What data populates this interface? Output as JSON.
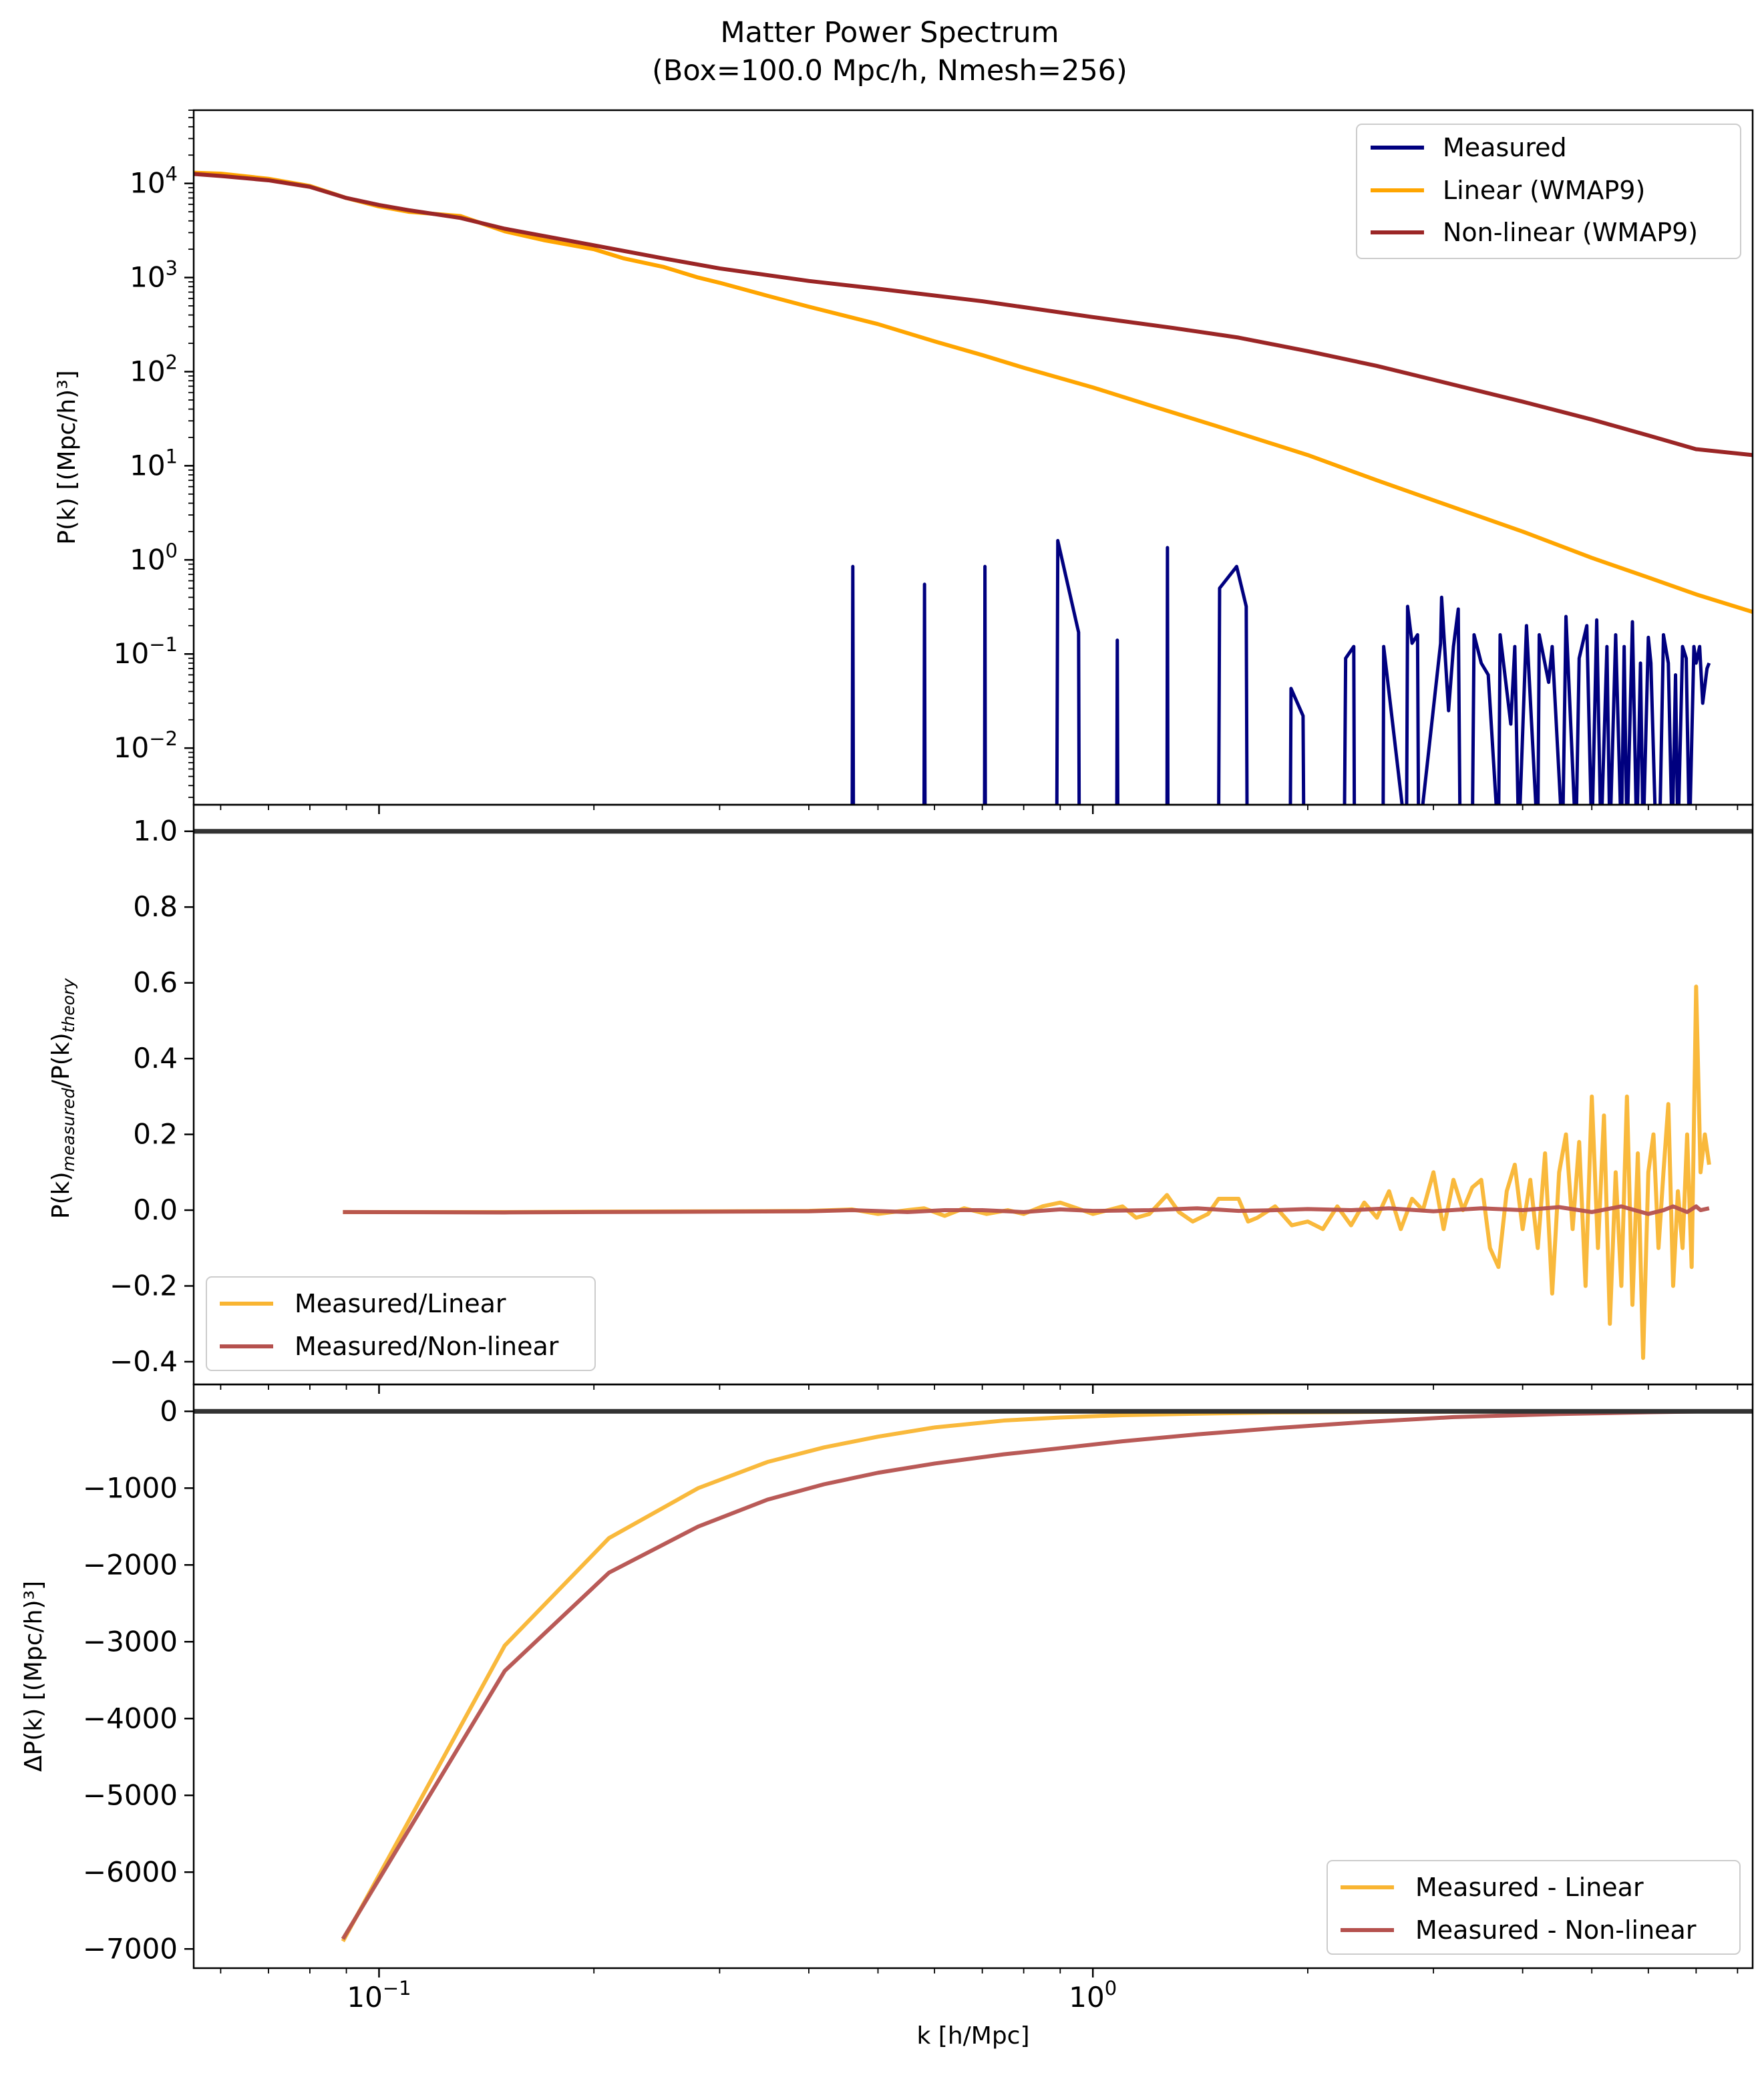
{
  "figure": {
    "title_line1": "Matter Power Spectrum",
    "title_line2": "(Box=100.0 Mpc/h, Nmesh=256)",
    "xlabel": "k [h/Mpc]"
  },
  "chart_data": [
    {
      "id": "power",
      "type": "line",
      "xscale": "log",
      "yscale": "log",
      "xlim": [
        0.055,
        8.4
      ],
      "ylim": [
        0.0025,
        60000
      ],
      "ylabel": "P(k) [(Mpc/h)³]",
      "grid": false,
      "legend_position": "top-right",
      "x_ticks": [
        {
          "base": "10",
          "exp": "−1",
          "value": 0.1
        },
        {
          "base": "10",
          "exp": "0",
          "value": 1
        }
      ],
      "y_ticks": [
        {
          "base": "10",
          "exp": "4",
          "value": 10000
        },
        {
          "base": "10",
          "exp": "3",
          "value": 1000
        },
        {
          "base": "10",
          "exp": "2",
          "value": 100
        },
        {
          "base": "10",
          "exp": "1",
          "value": 10
        },
        {
          "base": "10",
          "exp": "0",
          "value": 1
        },
        {
          "base": "10",
          "exp": "−1",
          "value": 0.1
        },
        {
          "base": "10",
          "exp": "−2",
          "value": 0.01
        }
      ],
      "series": [
        {
          "name": "Measured",
          "color": "#00007f",
          "x": [
            0.46,
            0.461,
            0.462,
            0.58,
            0.581,
            0.582,
            0.705,
            0.706,
            0.707,
            0.89,
            0.893,
            0.955,
            0.957,
            1.08,
            1.082,
            1.084,
            1.27,
            1.272,
            1.274,
            1.5,
            1.505,
            1.59,
            1.64,
            1.645,
            1.89,
            1.895,
            1.97,
            1.975,
            2.25,
            2.26,
            2.32,
            2.325,
            2.55,
            2.555,
            2.75,
            2.76,
            2.8,
            2.85,
            2.86,
            3.07,
            3.08,
            3.15,
            3.2,
            3.25,
            3.27,
            3.4,
            3.42,
            3.5,
            3.58,
            3.7,
            3.72,
            3.85,
            3.9,
            3.95,
            4.05,
            4.2,
            4.22,
            4.35,
            4.4,
            4.55,
            4.6,
            4.75,
            4.8,
            4.92,
            5.0,
            5.08,
            5.15,
            5.25,
            5.3,
            5.4,
            5.5,
            5.55,
            5.6,
            5.7,
            5.78,
            5.85,
            5.9,
            6.0,
            6.05,
            6.15,
            6.22,
            6.3,
            6.4,
            6.48,
            6.55,
            6.6,
            6.7,
            6.78,
            6.85,
            6.95,
            7.0,
            7.08,
            7.15,
            7.25,
            7.3
          ],
          "y": [
            0.001,
            0.85,
            0.001,
            0.001,
            0.55,
            0.001,
            0.001,
            0.85,
            0.001,
            0.001,
            1.6,
            0.17,
            0.001,
            0.001,
            0.14,
            0.001,
            0.001,
            1.35,
            0.001,
            0.001,
            0.5,
            0.85,
            0.32,
            0.001,
            0.001,
            0.043,
            0.022,
            0.001,
            0.001,
            0.09,
            0.12,
            0.001,
            0.001,
            0.12,
            0.001,
            0.32,
            0.13,
            0.16,
            0.001,
            0.13,
            0.4,
            0.025,
            0.12,
            0.3,
            0.001,
            0.001,
            0.16,
            0.08,
            0.06,
            0.001,
            0.16,
            0.018,
            0.12,
            0.001,
            0.2,
            0.001,
            0.16,
            0.05,
            0.12,
            0.001,
            0.25,
            0.001,
            0.09,
            0.2,
            0.001,
            0.23,
            0.001,
            0.12,
            0.001,
            0.16,
            0.001,
            0.12,
            0.001,
            0.22,
            0.001,
            0.08,
            0.001,
            0.15,
            0.08,
            0.001,
            0.001,
            0.16,
            0.08,
            0.001,
            0.06,
            0.001,
            0.12,
            0.09,
            0.001,
            0.12,
            0.08,
            0.12,
            0.03,
            0.07,
            0.08
          ]
        },
        {
          "name": "Linear (WMAP9)",
          "color": "#ffa500",
          "x": [
            0.055,
            0.06,
            0.07,
            0.08,
            0.09,
            0.1,
            0.11,
            0.13,
            0.15,
            0.17,
            0.2,
            0.22,
            0.25,
            0.28,
            0.3,
            0.35,
            0.4,
            0.5,
            0.6,
            0.7,
            0.8,
            1.0,
            1.2,
            1.5,
            2.0,
            2.5,
            3.0,
            4.0,
            5.0,
            6.0,
            7.0,
            8.4
          ],
          "y": [
            13000,
            12700,
            11200,
            9400,
            7000,
            5700,
            5000,
            4500,
            3100,
            2500,
            2000,
            1600,
            1300,
            1000,
            880,
            640,
            490,
            320,
            210,
            150,
            110,
            68,
            44,
            26,
            13,
            7,
            4.3,
            2.0,
            1.05,
            0.65,
            0.43,
            0.28
          ]
        },
        {
          "name": "Non-linear (WMAP9)",
          "color": "#9b2626",
          "x": [
            0.055,
            0.06,
            0.07,
            0.08,
            0.09,
            0.1,
            0.11,
            0.13,
            0.15,
            0.2,
            0.25,
            0.3,
            0.4,
            0.5,
            0.7,
            1.0,
            1.3,
            1.6,
            2.0,
            2.5,
            3.0,
            4.0,
            5.0,
            6.0,
            7.0,
            8.4
          ],
          "y": [
            12600,
            12000,
            10800,
            9200,
            7000,
            5900,
            5200,
            4300,
            3300,
            2200,
            1600,
            1250,
            920,
            760,
            560,
            380,
            290,
            230,
            165,
            115,
            82,
            48,
            31,
            21,
            15,
            13
          ]
        }
      ]
    },
    {
      "id": "ratio",
      "type": "line",
      "xscale": "log",
      "yscale": "linear",
      "xlim": [
        0.055,
        8.4
      ],
      "ylim": [
        -0.46,
        1.07
      ],
      "ylabel_main": "P(k)",
      "ylabel_sub1": "measured",
      "ylabel_mid": "/P(k)",
      "ylabel_sub2": "theory",
      "grid": false,
      "legend_position": "lower-left",
      "reference_line": 1.0,
      "y_ticks": [
        {
          "label": "1.0",
          "value": 1.0
        },
        {
          "label": "0.8",
          "value": 0.8
        },
        {
          "label": "0.6",
          "value": 0.6
        },
        {
          "label": "0.4",
          "value": 0.4
        },
        {
          "label": "0.2",
          "value": 0.2
        },
        {
          "label": "0.0",
          "value": 0.0
        },
        {
          "label": "−0.2",
          "value": -0.2
        },
        {
          "label": "−0.4",
          "value": -0.4
        }
      ],
      "series": [
        {
          "name": "Measured/Linear",
          "color": "#f9b532",
          "x": [
            0.089,
            0.15,
            0.2,
            0.3,
            0.4,
            0.46,
            0.5,
            0.55,
            0.58,
            0.62,
            0.66,
            0.71,
            0.76,
            0.8,
            0.85,
            0.9,
            0.95,
            1.0,
            1.05,
            1.1,
            1.15,
            1.2,
            1.27,
            1.32,
            1.38,
            1.45,
            1.5,
            1.6,
            1.65,
            1.7,
            1.8,
            1.9,
            2.0,
            2.1,
            2.2,
            2.3,
            2.4,
            2.5,
            2.6,
            2.7,
            2.8,
            2.9,
            3.0,
            3.1,
            3.2,
            3.3,
            3.4,
            3.5,
            3.6,
            3.7,
            3.8,
            3.9,
            4.0,
            4.1,
            4.2,
            4.3,
            4.4,
            4.5,
            4.6,
            4.7,
            4.8,
            4.9,
            5.0,
            5.1,
            5.2,
            5.3,
            5.4,
            5.5,
            5.6,
            5.7,
            5.8,
            5.9,
            6.0,
            6.1,
            6.2,
            6.3,
            6.4,
            6.5,
            6.6,
            6.7,
            6.8,
            6.9,
            7.0,
            7.1,
            7.2,
            7.3
          ],
          "y": [
            -0.005,
            -0.005,
            -0.004,
            -0.003,
            -0.002,
            0.002,
            -0.01,
            0.0,
            0.005,
            -0.015,
            0.005,
            -0.01,
            0.0,
            -0.01,
            0.01,
            0.02,
            0.005,
            -0.01,
            0.0,
            0.01,
            -0.02,
            -0.01,
            0.04,
            -0.005,
            -0.03,
            -0.01,
            0.03,
            0.03,
            -0.03,
            -0.02,
            0.01,
            -0.04,
            -0.03,
            -0.05,
            0.01,
            -0.04,
            0.02,
            -0.02,
            0.05,
            -0.05,
            0.03,
            0.0,
            0.1,
            -0.05,
            0.08,
            0.0,
            0.06,
            0.08,
            -0.1,
            -0.15,
            0.05,
            0.12,
            -0.05,
            0.08,
            -0.1,
            0.15,
            -0.22,
            0.1,
            0.2,
            -0.05,
            0.18,
            -0.2,
            0.3,
            -0.1,
            0.25,
            -0.3,
            0.1,
            -0.2,
            0.3,
            -0.25,
            0.15,
            -0.39,
            0.1,
            0.2,
            -0.1,
            0.1,
            0.28,
            -0.2,
            0.05,
            -0.1,
            0.2,
            -0.15,
            0.59,
            0.1,
            0.2,
            0.12
          ]
        },
        {
          "name": "Measured/Non-linear",
          "color": "#b5514e",
          "x": [
            0.089,
            0.15,
            0.2,
            0.3,
            0.4,
            0.46,
            0.55,
            0.62,
            0.7,
            0.8,
            0.9,
            1.0,
            1.2,
            1.4,
            1.6,
            1.8,
            2.0,
            2.3,
            2.6,
            3.0,
            3.5,
            4.0,
            4.5,
            5.0,
            5.5,
            6.0,
            6.3,
            6.5,
            6.8,
            7.0,
            7.1,
            7.3
          ],
          "y": [
            -0.005,
            -0.006,
            -0.005,
            -0.004,
            -0.003,
            0.0,
            -0.005,
            0.0,
            0.0,
            -0.005,
            0.002,
            -0.002,
            0.0,
            0.005,
            -0.002,
            0.0,
            0.003,
            0.0,
            0.005,
            -0.003,
            0.005,
            0.0,
            0.008,
            -0.005,
            0.01,
            -0.01,
            0.0,
            0.01,
            -0.005,
            0.01,
            0.0,
            0.005
          ]
        }
      ]
    },
    {
      "id": "difference",
      "type": "line",
      "xscale": "log",
      "yscale": "linear",
      "xlim": [
        0.055,
        8.4
      ],
      "ylim": [
        -7250,
        350
      ],
      "ylabel": "ΔP(k) [(Mpc/h)³]",
      "grid": false,
      "legend_position": "lower-right",
      "reference_line": 0,
      "y_ticks": [
        {
          "label": "0",
          "value": 0
        },
        {
          "label": "−1000",
          "value": -1000
        },
        {
          "label": "−2000",
          "value": -2000
        },
        {
          "label": "−3000",
          "value": -3000
        },
        {
          "label": "−4000",
          "value": -4000
        },
        {
          "label": "−5000",
          "value": -5000
        },
        {
          "label": "−6000",
          "value": -6000
        },
        {
          "label": "−7000",
          "value": -7000
        }
      ],
      "series": [
        {
          "name": "Measured - Linear",
          "color": "#f9b532",
          "x": [
            0.089,
            0.15,
            0.21,
            0.28,
            0.35,
            0.42,
            0.5,
            0.6,
            0.75,
            0.9,
            1.1,
            1.4,
            1.8,
            2.4,
            3.2,
            4.5,
            6.0,
            7.3
          ],
          "y": [
            -6900,
            -3050,
            -1650,
            -1000,
            -660,
            -470,
            -330,
            -210,
            -120,
            -80,
            -50,
            -30,
            -15,
            -8,
            -4,
            -2,
            -1,
            0
          ]
        },
        {
          "name": "Measured - Non-linear",
          "color": "#b5514e",
          "x": [
            0.089,
            0.15,
            0.21,
            0.28,
            0.35,
            0.42,
            0.5,
            0.6,
            0.75,
            0.9,
            1.1,
            1.4,
            1.8,
            2.4,
            3.2,
            4.5,
            6.0,
            7.3
          ],
          "y": [
            -6870,
            -3380,
            -2100,
            -1500,
            -1150,
            -950,
            -800,
            -680,
            -560,
            -480,
            -390,
            -300,
            -220,
            -140,
            -75,
            -35,
            -12,
            0
          ]
        }
      ]
    }
  ]
}
